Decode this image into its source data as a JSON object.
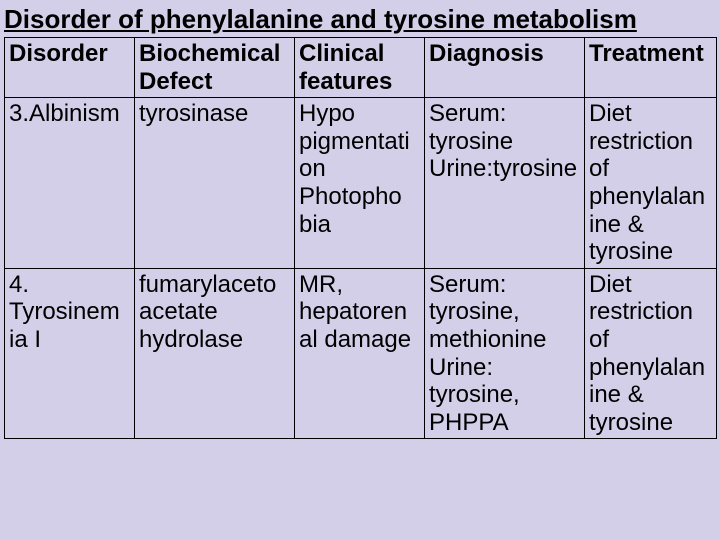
{
  "title": "Disorder of phenylalanine and tyrosine metabolism",
  "columns": [
    "Disorder",
    "Biochemical Defect",
    "Clinical features",
    "Diagnosis",
    "Treatment"
  ],
  "rows": [
    {
      "disorder": "3.Albinism",
      "defect": "tyrosinase",
      "clinical": "Hypo pigmentati​on Photopho​bia",
      "diagnosis": "Serum: tyrosine Urine:tyrosine",
      "treatment": "Diet restriction of phenylalan​ine & tyrosine"
    },
    {
      "disorder": "4. Tyrosinem​ia I",
      "defect": "fumarylaceto acetate hydrolase",
      "clinical": "MR, hepatoren​al damage",
      "diagnosis": "Serum: tyrosine, methionine Urine: tyrosine, PHPPA",
      "treatment": "Diet restriction of phenylalan​ine & tyrosine"
    }
  ],
  "style": {
    "background_color": "#d4cfe8",
    "title_fontsize": 26,
    "cell_fontsize": 24,
    "border_color": "#000000",
    "text_color": "#000000"
  }
}
